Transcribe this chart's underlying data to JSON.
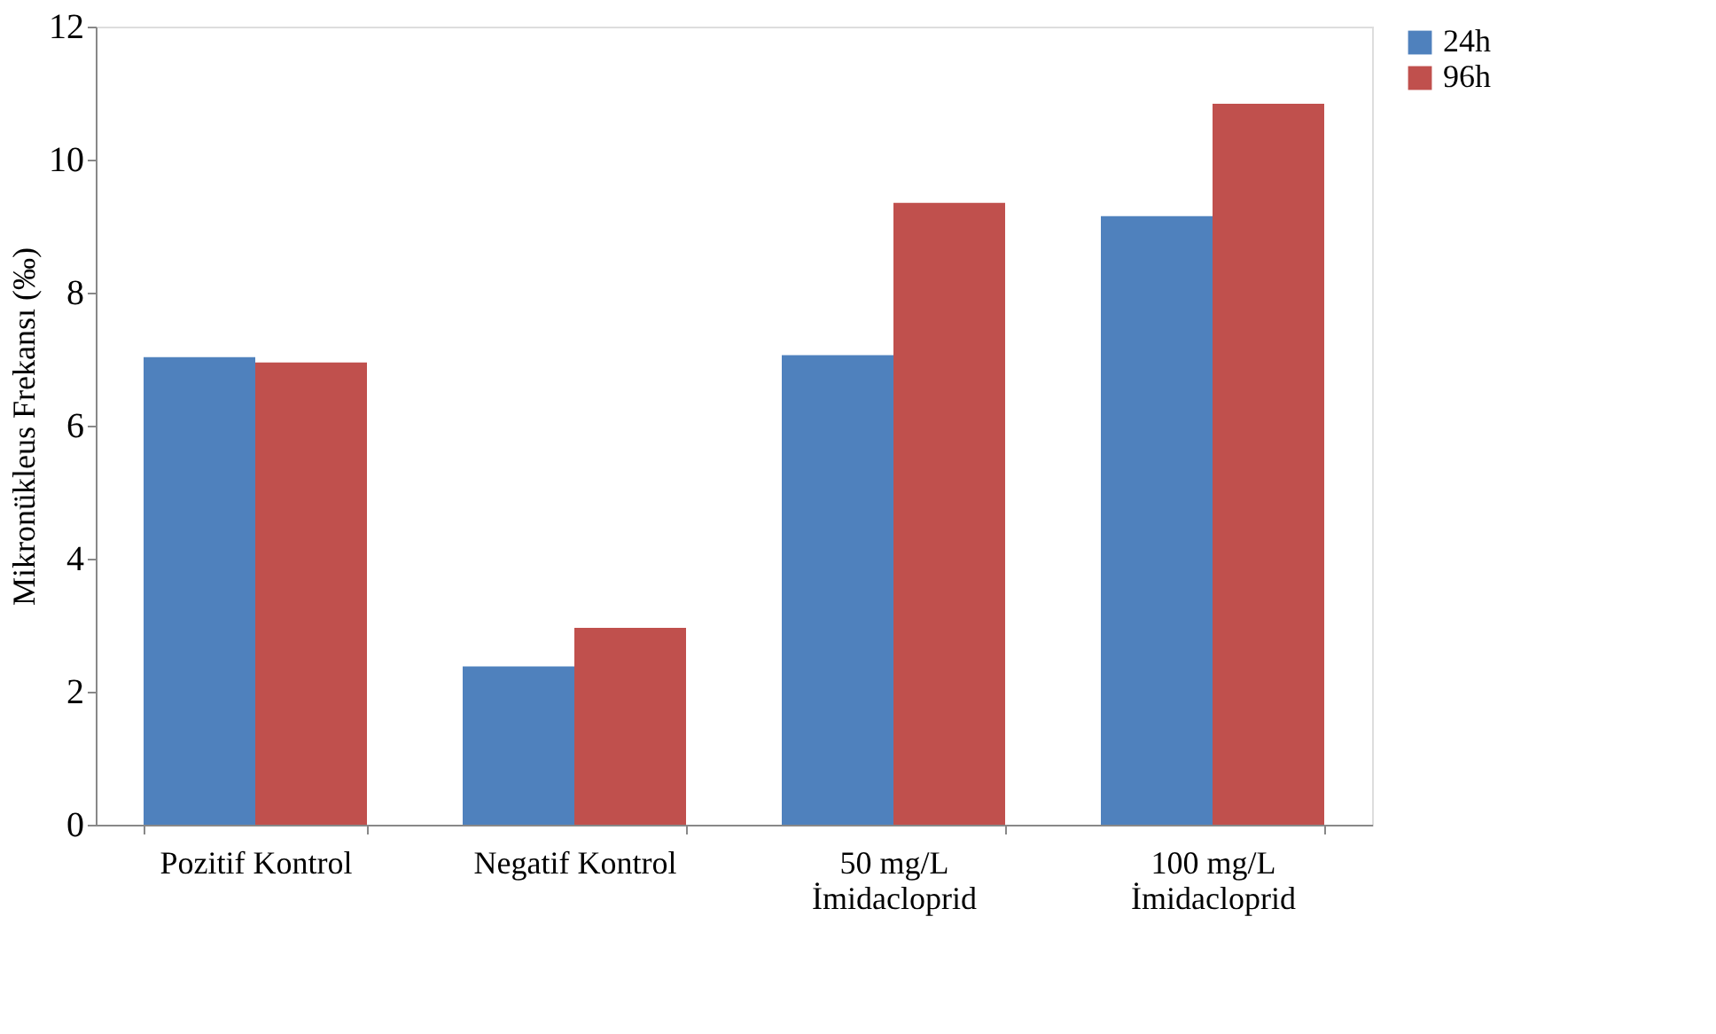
{
  "chart_data": {
    "type": "bar",
    "ylabel": "Mikronükleus  Frekansı (‰)",
    "categories": [
      "Pozitif Kontrol",
      "Negatif Kontrol",
      "50 mg/L İmidacloprid",
      "100 mg/L İmidacloprid"
    ],
    "series": [
      {
        "name": "24h",
        "color": "#4f81bd",
        "values": [
          7.03,
          2.38,
          7.06,
          9.15
        ]
      },
      {
        "name": "96h",
        "color": "#c0504d",
        "values": [
          6.95,
          2.96,
          9.35,
          10.84
        ]
      }
    ],
    "ylim": [
      0,
      12
    ],
    "yticks": [
      0,
      2,
      4,
      6,
      8,
      10,
      12
    ],
    "grid": false,
    "legend": "right"
  }
}
